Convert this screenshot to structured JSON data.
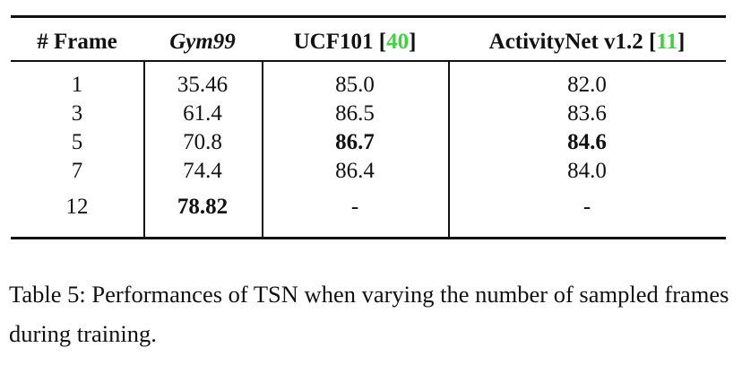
{
  "table": {
    "header": [
      [
        {
          "text": "# Frame"
        }
      ],
      [
        {
          "text": "Gym99",
          "style": "italic"
        }
      ],
      [
        {
          "text": "UCF101 ["
        },
        {
          "text": "40",
          "style": "cite"
        },
        {
          "text": "]"
        }
      ],
      [
        {
          "text": "ActivityNet v1.2 ["
        },
        {
          "text": "11",
          "style": "cite"
        },
        {
          "text": "]"
        }
      ]
    ],
    "rows": [
      {
        "cells": [
          "1",
          "35.46",
          "85.0",
          "82.0"
        ],
        "bold": []
      },
      {
        "cells": [
          "3",
          "61.4",
          "86.5",
          "83.6"
        ],
        "bold": []
      },
      {
        "cells": [
          "5",
          "70.8",
          "86.7",
          "84.6"
        ],
        "bold": [
          2,
          3
        ]
      },
      {
        "cells": [
          "7",
          "74.4",
          "86.4",
          "84.0"
        ],
        "bold": []
      },
      {
        "cells": [
          "12",
          "78.82",
          "-",
          "-"
        ],
        "bold": [
          1
        ]
      }
    ]
  },
  "caption": "Table 5: Performances of TSN when varying the number of sampled frames during training."
}
